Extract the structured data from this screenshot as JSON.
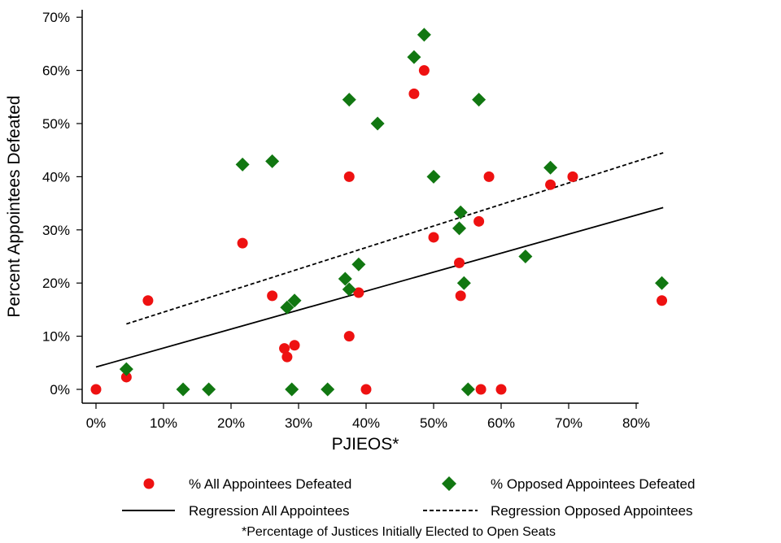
{
  "chart_data": {
    "type": "scatter",
    "xlabel": "PJIEOS*",
    "ylabel": "Percent Appointees Defeated",
    "xlim": [
      0,
      100
    ],
    "ylim": [
      0,
      70
    ],
    "x_ticks": [
      0,
      10,
      20,
      30,
      40,
      50,
      60,
      70,
      80
    ],
    "x_tick_labels": [
      "0%",
      "10%",
      "20%",
      "30%",
      "40%",
      "50%",
      "60%",
      "70%",
      "80%"
    ],
    "y_ticks": [
      0,
      10,
      20,
      30,
      40,
      50,
      60,
      70
    ],
    "y_tick_labels": [
      "0%",
      "10%",
      "20%",
      "30%",
      "40%",
      "50%",
      "60%",
      "70%"
    ],
    "grid": false,
    "legend_position": "bottom",
    "colors": {
      "all": "#ee1111",
      "opposed": "#117711",
      "line": "#000000"
    },
    "series": [
      {
        "name": "% All Appointees Defeated",
        "marker": "circle",
        "points": [
          [
            0,
            0
          ],
          [
            4.5,
            2.3
          ],
          [
            7.7,
            16.7
          ],
          [
            21.7,
            27.5
          ],
          [
            26.1,
            17.6
          ],
          [
            27.9,
            7.7
          ],
          [
            28.3,
            6.1
          ],
          [
            29.4,
            8.3
          ],
          [
            37.5,
            40.0
          ],
          [
            37.5,
            10.0
          ],
          [
            38.9,
            18.2
          ],
          [
            40.0,
            0
          ],
          [
            47.1,
            55.6
          ],
          [
            48.6,
            60.0
          ],
          [
            50.0,
            28.6
          ],
          [
            53.8,
            23.8
          ],
          [
            54.0,
            17.6
          ],
          [
            56.7,
            31.6
          ],
          [
            57.0,
            0
          ],
          [
            58.2,
            40.0
          ],
          [
            60.0,
            0
          ],
          [
            67.3,
            38.5
          ],
          [
            70.6,
            40.0
          ],
          [
            83.8,
            16.7
          ]
        ]
      },
      {
        "name": "% Opposed Appointees Defeated",
        "marker": "diamond",
        "points": [
          [
            4.5,
            3.8
          ],
          [
            12.9,
            0
          ],
          [
            16.7,
            0
          ],
          [
            21.7,
            42.3
          ],
          [
            26.1,
            42.9
          ],
          [
            28.3,
            15.4
          ],
          [
            29.4,
            16.7
          ],
          [
            29.0,
            0
          ],
          [
            34.3,
            0
          ],
          [
            36.9,
            20.8
          ],
          [
            37.5,
            18.8
          ],
          [
            37.5,
            54.5
          ],
          [
            38.9,
            23.5
          ],
          [
            41.7,
            50.0
          ],
          [
            47.1,
            62.5
          ],
          [
            48.6,
            66.7
          ],
          [
            50.0,
            40.0
          ],
          [
            53.8,
            30.3
          ],
          [
            54.0,
            33.3
          ],
          [
            54.5,
            20.0
          ],
          [
            55.1,
            0
          ],
          [
            56.7,
            54.5
          ],
          [
            63.6,
            25.0
          ],
          [
            67.3,
            41.7
          ],
          [
            83.8,
            20.0
          ]
        ]
      }
    ],
    "regression_lines": [
      {
        "name": "Regression All Appointees",
        "style": "solid",
        "x": [
          0,
          84
        ],
        "y": [
          4.2,
          34.2
        ]
      },
      {
        "name": "Regression Opposed Appointees",
        "style": "dashed",
        "x": [
          4.5,
          84
        ],
        "y": [
          12.3,
          44.5
        ]
      }
    ],
    "legend": {
      "items": [
        {
          "label": "% All Appointees Defeated",
          "key": "circle-red"
        },
        {
          "label": "% Opposed Appointees Defeated",
          "key": "diamond-green"
        },
        {
          "label": "Regression All Appointees",
          "key": "solid-line"
        },
        {
          "label": "Regression Opposed Appointees",
          "key": "dashed-line"
        }
      ]
    },
    "footnote": "*Percentage of Justices Initially Elected to Open Seats"
  }
}
